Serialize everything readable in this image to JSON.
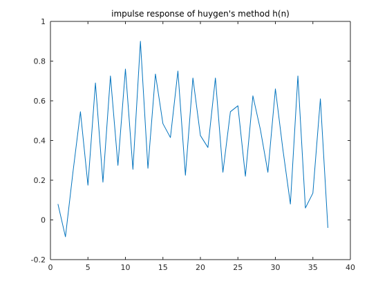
{
  "chart_data": {
    "type": "line",
    "title": "impulse response of huygen's method h(n)",
    "xlabel": "",
    "ylabel": "",
    "xlim": [
      0,
      40
    ],
    "ylim": [
      -0.2,
      1
    ],
    "xticks": [
      0,
      5,
      10,
      15,
      20,
      25,
      30,
      35,
      40
    ],
    "yticks": [
      -0.2,
      0,
      0.2,
      0.4,
      0.6,
      0.8,
      1
    ],
    "xtick_labels": [
      "0",
      "5",
      "10",
      "15",
      "20",
      "25",
      "30",
      "35",
      "40"
    ],
    "ytick_labels": [
      "-0.2",
      "0",
      "0.2",
      "0.4",
      "0.6",
      "0.8",
      "1"
    ],
    "grid": false,
    "series": [
      {
        "color": "#0072bd",
        "x": [
          1,
          2,
          3,
          4,
          5,
          6,
          7,
          8,
          9,
          10,
          11,
          12,
          13,
          14,
          15,
          16,
          17,
          18,
          19,
          20,
          21,
          22,
          23,
          24,
          25,
          26,
          27,
          28,
          29,
          30,
          31,
          32,
          33,
          34,
          35,
          36,
          37
        ],
        "y": [
          0.08,
          -0.085,
          0.24,
          0.545,
          0.175,
          0.69,
          0.19,
          0.725,
          0.275,
          0.76,
          0.255,
          0.9,
          0.26,
          0.735,
          0.485,
          0.415,
          0.75,
          0.225,
          0.715,
          0.425,
          0.365,
          0.715,
          0.24,
          0.545,
          0.575,
          0.22,
          0.625,
          0.455,
          0.24,
          0.66,
          0.355,
          0.08,
          0.725,
          0.06,
          0.135,
          0.61,
          -0.04
        ]
      }
    ]
  }
}
